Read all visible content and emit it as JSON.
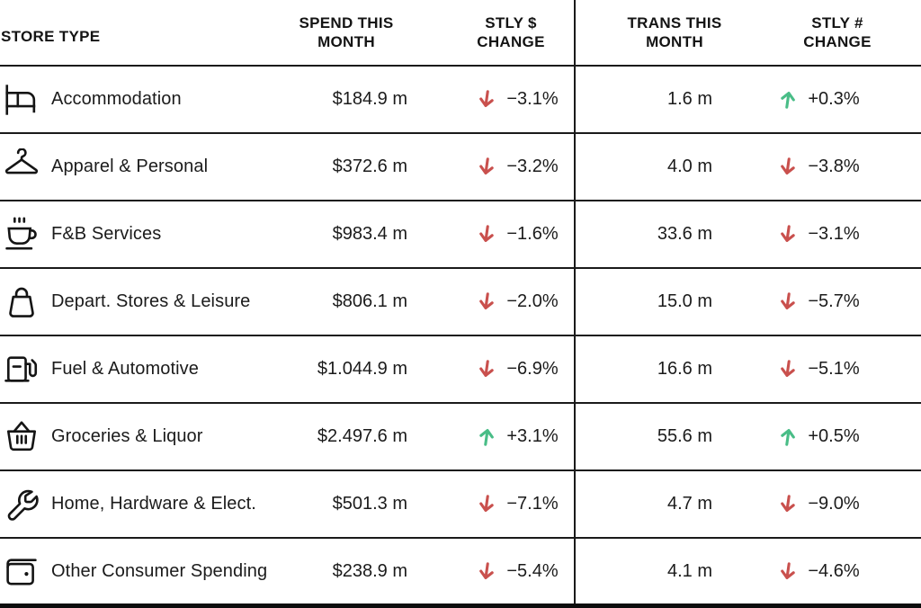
{
  "title": "Store type spend and transactions table",
  "colors": {
    "positive": "#49bd87",
    "negative": "#c9504d",
    "ink": "#1b1b1b",
    "line": "#1a1a1a"
  },
  "header": {
    "store_type": "STORE TYPE",
    "spend": [
      "SPEND THIS",
      "MONTH"
    ],
    "stly_dollar": [
      "STLY $",
      "CHANGE"
    ],
    "trans": [
      "TRANS THIS",
      "MONTH"
    ],
    "stly_hash": [
      "STLY #",
      "CHANGE"
    ]
  },
  "rows": [
    {
      "icon": "bed-icon",
      "label": "Accommodation",
      "spend": "$184.9 m",
      "spend_change": "−3.1%",
      "spend_dir": "down",
      "trans": "1.6 m",
      "trans_change": "+0.3%",
      "trans_dir": "up"
    },
    {
      "icon": "hanger-icon",
      "label": "Apparel & Personal",
      "spend": "$372.6 m",
      "spend_change": "−3.2%",
      "spend_dir": "down",
      "trans": "4.0 m",
      "trans_change": "−3.8%",
      "trans_dir": "down"
    },
    {
      "icon": "coffee-cup-icon",
      "label": "F&B Services",
      "spend": "$983.4 m",
      "spend_change": "−1.6%",
      "spend_dir": "down",
      "trans": "33.6 m",
      "trans_change": "−3.1%",
      "trans_dir": "down"
    },
    {
      "icon": "shopping-bag-icon",
      "label": "Depart. Stores & Leisure",
      "spend": "$806.1 m",
      "spend_change": "−2.0%",
      "spend_dir": "down",
      "trans": "15.0 m",
      "trans_change": "−5.7%",
      "trans_dir": "down"
    },
    {
      "icon": "fuel-pump-icon",
      "label": "Fuel & Automotive",
      "spend": "$1.044.9 m",
      "spend_change": "−6.9%",
      "spend_dir": "down",
      "trans": "16.6 m",
      "trans_change": "−5.1%",
      "trans_dir": "down"
    },
    {
      "icon": "basket-icon",
      "label": "Groceries & Liquor",
      "spend": "$2.497.6 m",
      "spend_change": "+3.1%",
      "spend_dir": "up",
      "trans": "55.6 m",
      "trans_change": "+0.5%",
      "trans_dir": "up"
    },
    {
      "icon": "wrench-icon",
      "label": "Home, Hardware & Elect.",
      "spend": "$501.3 m",
      "spend_change": "−7.1%",
      "spend_dir": "down",
      "trans": "4.7 m",
      "trans_change": "−9.0%",
      "trans_dir": "down"
    },
    {
      "icon": "wallet-icon",
      "label": "Other Consumer Spending",
      "spend": "$238.9 m",
      "spend_change": "−5.4%",
      "spend_dir": "down",
      "trans": "4.1 m",
      "trans_change": "−4.6%",
      "trans_dir": "down"
    }
  ],
  "chart_data": {
    "type": "table",
    "columns": [
      "STORE TYPE",
      "SPEND THIS MONTH",
      "STLY $ CHANGE",
      "TRANS THIS MONTH",
      "STLY # CHANGE"
    ],
    "rows": [
      [
        "Accommodation",
        "$184.9 m",
        "-3.1%",
        "1.6 m",
        "+0.3%"
      ],
      [
        "Apparel & Personal",
        "$372.6 m",
        "-3.2%",
        "4.0 m",
        "-3.8%"
      ],
      [
        "F&B Services",
        "$983.4 m",
        "-1.6%",
        "33.6 m",
        "-3.1%"
      ],
      [
        "Depart. Stores & Leisure",
        "$806.1 m",
        "-2.0%",
        "15.0 m",
        "-5.7%"
      ],
      [
        "Fuel & Automotive",
        "$1.044.9 m",
        "-6.9%",
        "16.6 m",
        "-5.1%"
      ],
      [
        "Groceries & Liquor",
        "$2.497.6 m",
        "+3.1%",
        "55.6 m",
        "+0.5%"
      ],
      [
        "Home, Hardware & Elect.",
        "$501.3 m",
        "-7.1%",
        "4.7 m",
        "-9.0%"
      ],
      [
        "Other Consumer Spending",
        "$238.9 m",
        "-5.4%",
        "4.1 m",
        "-4.6%"
      ]
    ],
    "notes": "Negative changes shown with red down arrows, positive with green up arrows"
  }
}
